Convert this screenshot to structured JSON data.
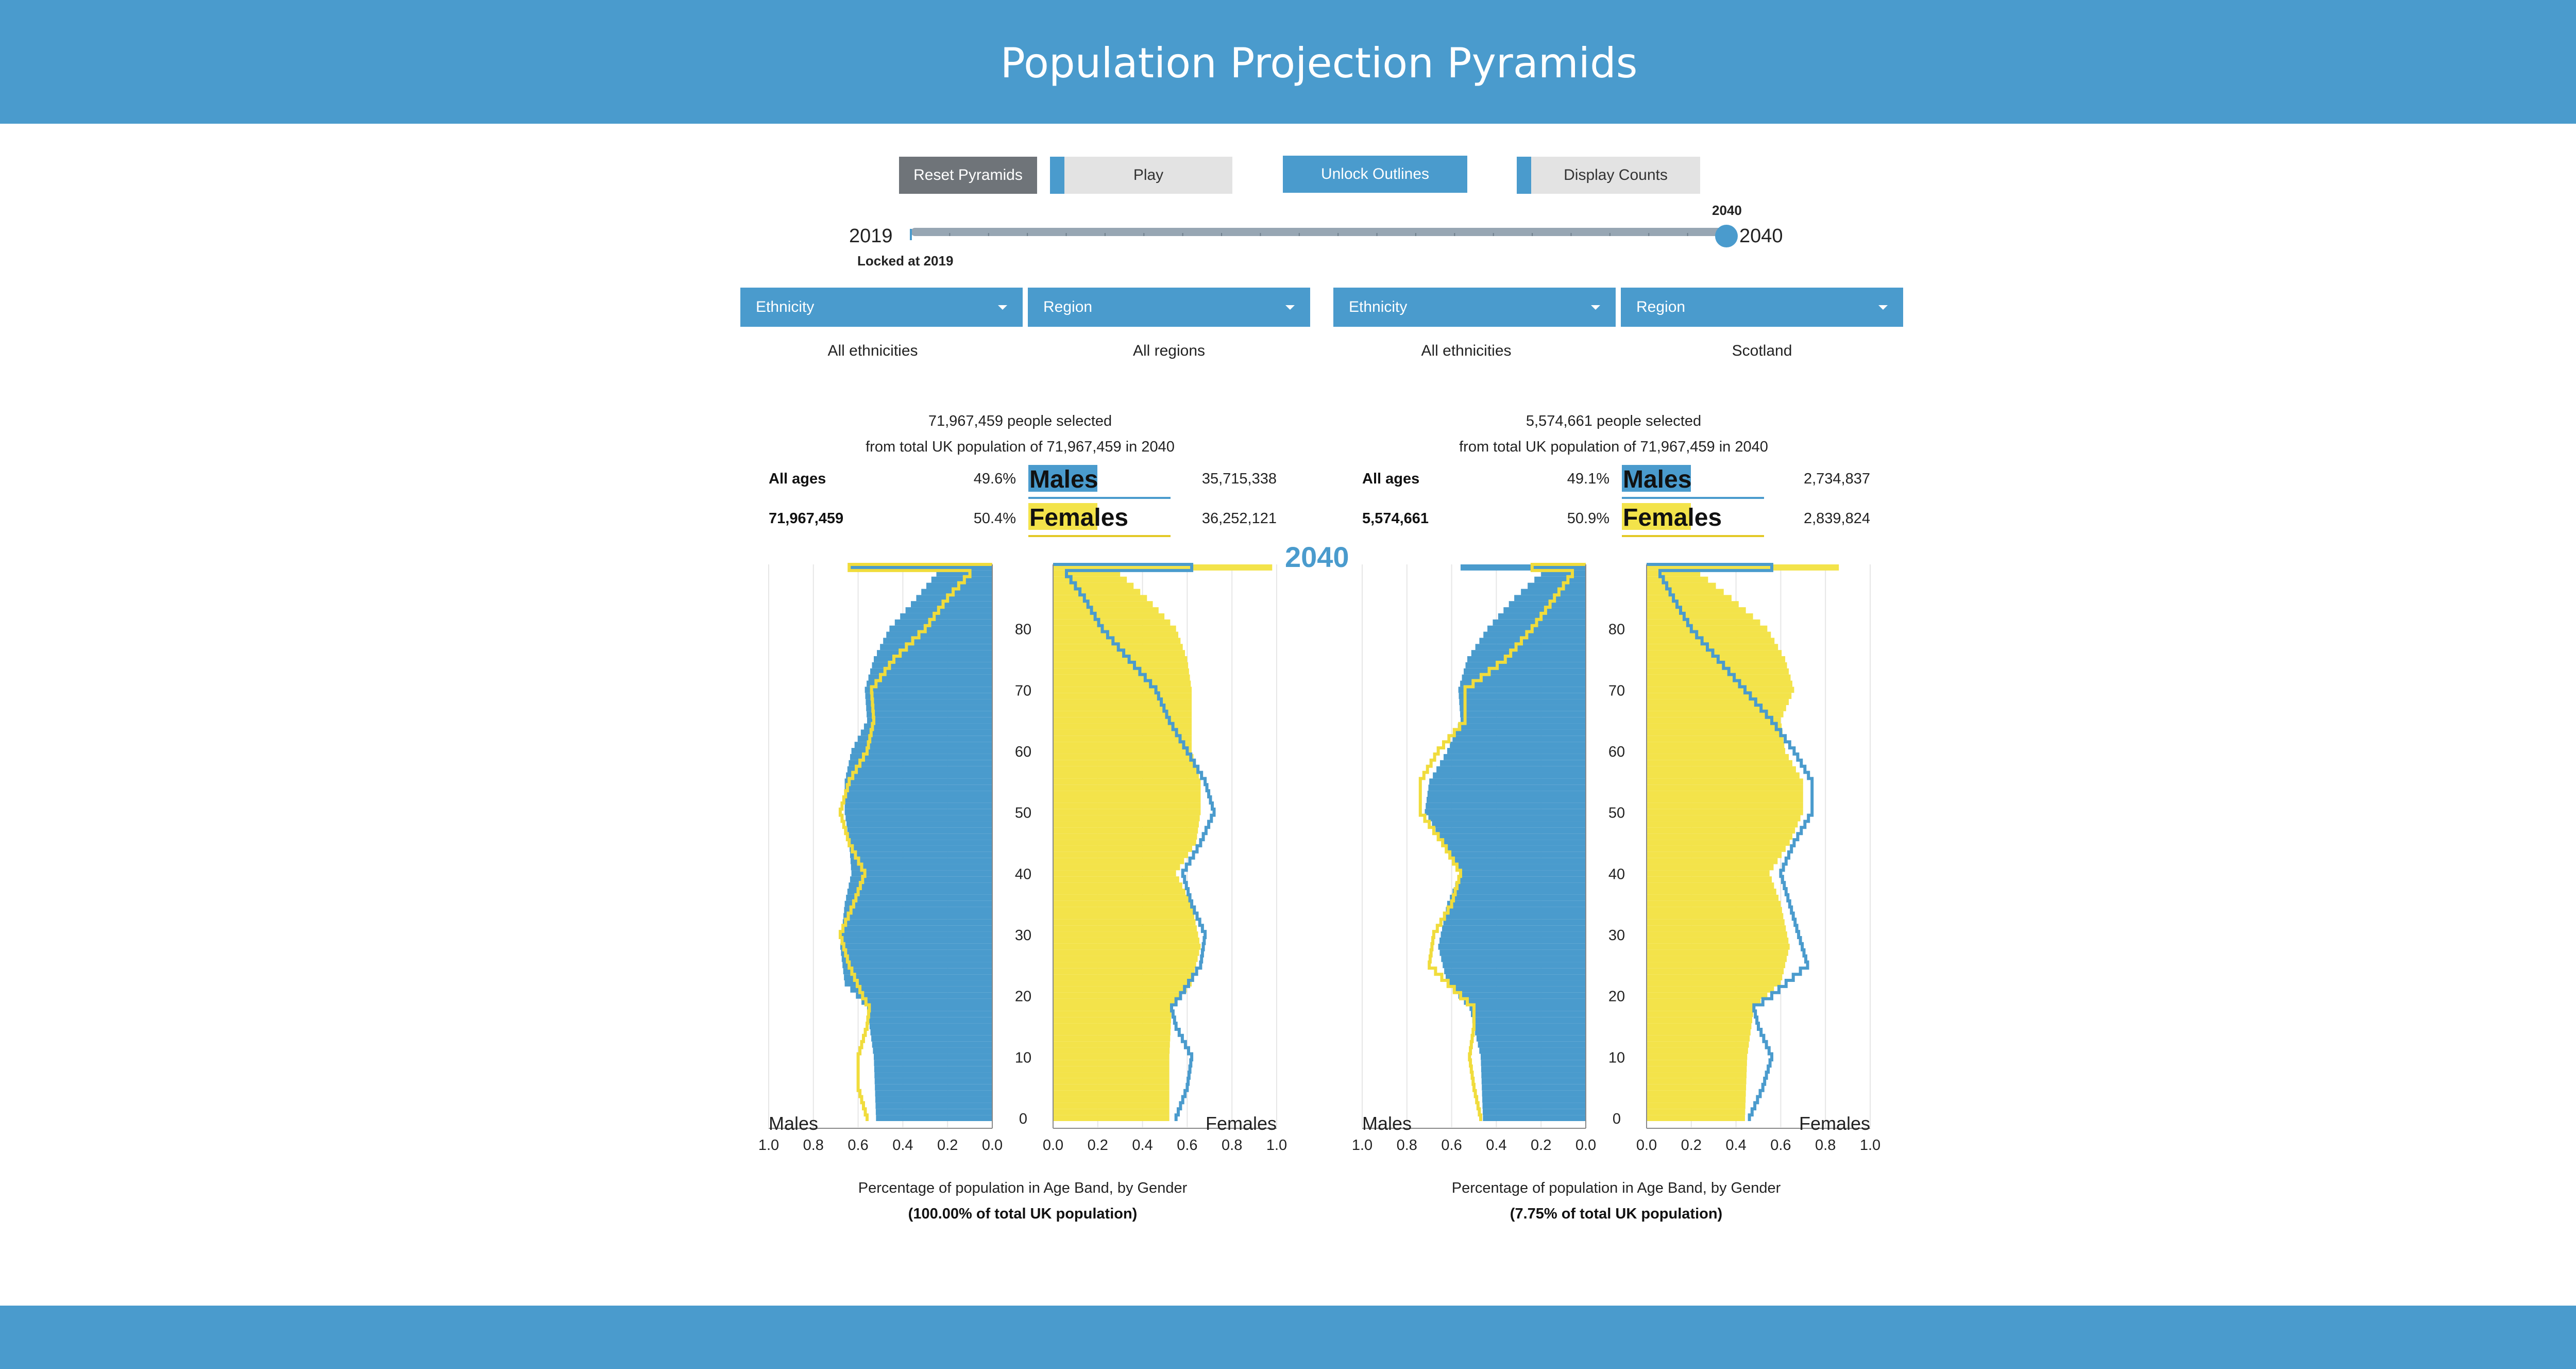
{
  "header": {
    "title": "Population Projection Pyramids"
  },
  "controls": {
    "reset_label": "Reset Pyramids",
    "play_label": "Play",
    "unlock_label": "Unlock Outlines",
    "counts_label": "Display Counts",
    "slider_min_label": "2019",
    "slider_max_label": "2040",
    "slider_value_label": "2040",
    "locked_label": "Locked at 2019",
    "slider_value": 2040,
    "slider_min": 2019,
    "slider_max": 2040
  },
  "panels": [
    {
      "ethnicity_label": "Ethnicity",
      "region_label": "Region",
      "ethnicity_value": "All ethnicities",
      "region_value": "All regions",
      "selected_text": "71,967,459 people selected",
      "from_text": "from total UK population of 71,967,459 in 2040",
      "all_ages_label": "All ages",
      "total": "71,967,459",
      "male_pct": "49.6%",
      "female_pct": "50.4%",
      "male_count": "35,715,338",
      "female_count": "36,252,121",
      "males_label": "Males",
      "females_label": "Females",
      "year_badge": "2040",
      "caption": "Percentage of population in Age Band, by Gender",
      "caption_share": "(100.00% of total UK population)"
    },
    {
      "ethnicity_label": "Ethnicity",
      "region_label": "Region",
      "ethnicity_value": "All ethnicities",
      "region_value": "Scotland",
      "selected_text": "5,574,661 people selected",
      "from_text": "from total UK population of 71,967,459 in 2040",
      "all_ages_label": "All ages",
      "total": "5,574,661",
      "male_pct": "49.1%",
      "female_pct": "50.9%",
      "male_count": "2,734,837",
      "female_count": "2,839,824",
      "males_label": "Males",
      "females_label": "Females",
      "year_badge": "",
      "caption": "Percentage of population in Age Band, by Gender",
      "caption_share": "(7.75% of total UK population)"
    }
  ],
  "colors": {
    "male": "#4a9bcd",
    "female": "#f3e34a",
    "header": "#4a9bcd"
  },
  "chart_data": [
    {
      "type": "bar",
      "orientation": "population-pyramid",
      "title": "",
      "xlabel": "Percentage of population in Age Band, by Gender",
      "male_axis_label": "Males",
      "female_axis_label": "Females",
      "age_ticks": [
        0,
        10,
        20,
        30,
        40,
        50,
        60,
        70,
        80
      ],
      "x_ticks": [
        "1.0",
        "0.8",
        "0.6",
        "0.4",
        "0.2",
        "0.0"
      ],
      "xlim": [
        0,
        1.0
      ],
      "age_range": [
        0,
        90
      ],
      "series_key": {
        "bars": "2040",
        "outline": "2019"
      },
      "male_bars_2040": [
        [
          0,
          0.52
        ],
        [
          10,
          0.53
        ],
        [
          18,
          0.56
        ],
        [
          22,
          0.66
        ],
        [
          28,
          0.68
        ],
        [
          35,
          0.66
        ],
        [
          40,
          0.63
        ],
        [
          45,
          0.64
        ],
        [
          50,
          0.66
        ],
        [
          55,
          0.66
        ],
        [
          60,
          0.63
        ],
        [
          65,
          0.56
        ],
        [
          70,
          0.57
        ],
        [
          75,
          0.53
        ],
        [
          80,
          0.46
        ],
        [
          85,
          0.34
        ],
        [
          89,
          0.25
        ],
        [
          90,
          0.64
        ]
      ],
      "male_outline_2019": [
        [
          0,
          0.56
        ],
        [
          5,
          0.6
        ],
        [
          10,
          0.6
        ],
        [
          15,
          0.56
        ],
        [
          18,
          0.55
        ],
        [
          20,
          0.58
        ],
        [
          25,
          0.64
        ],
        [
          30,
          0.68
        ],
        [
          35,
          0.62
        ],
        [
          40,
          0.57
        ],
        [
          45,
          0.64
        ],
        [
          50,
          0.68
        ],
        [
          55,
          0.64
        ],
        [
          60,
          0.56
        ],
        [
          65,
          0.53
        ],
        [
          70,
          0.54
        ],
        [
          75,
          0.44
        ],
        [
          80,
          0.3
        ],
        [
          85,
          0.2
        ],
        [
          89,
          0.1
        ],
        [
          90,
          0.64
        ]
      ],
      "female_bars_2040": [
        [
          0,
          0.52
        ],
        [
          10,
          0.52
        ],
        [
          18,
          0.53
        ],
        [
          22,
          0.62
        ],
        [
          28,
          0.66
        ],
        [
          35,
          0.62
        ],
        [
          40,
          0.55
        ],
        [
          45,
          0.64
        ],
        [
          50,
          0.66
        ],
        [
          55,
          0.66
        ],
        [
          60,
          0.62
        ],
        [
          65,
          0.62
        ],
        [
          70,
          0.62
        ],
        [
          75,
          0.6
        ],
        [
          80,
          0.55
        ],
        [
          85,
          0.42
        ],
        [
          89,
          0.3
        ],
        [
          90,
          0.98
        ]
      ],
      "female_outline_2019": [
        [
          0,
          0.55
        ],
        [
          5,
          0.6
        ],
        [
          10,
          0.62
        ],
        [
          15,
          0.55
        ],
        [
          18,
          0.53
        ],
        [
          20,
          0.57
        ],
        [
          25,
          0.66
        ],
        [
          30,
          0.68
        ],
        [
          35,
          0.62
        ],
        [
          40,
          0.58
        ],
        [
          45,
          0.66
        ],
        [
          50,
          0.72
        ],
        [
          55,
          0.68
        ],
        [
          60,
          0.6
        ],
        [
          65,
          0.52
        ],
        [
          70,
          0.46
        ],
        [
          75,
          0.34
        ],
        [
          80,
          0.22
        ],
        [
          85,
          0.14
        ],
        [
          89,
          0.06
        ],
        [
          90,
          0.62
        ]
      ]
    },
    {
      "type": "bar",
      "orientation": "population-pyramid",
      "title": "",
      "xlabel": "Percentage of population in Age Band, by Gender",
      "male_axis_label": "Males",
      "female_axis_label": "Females",
      "age_ticks": [
        0,
        10,
        20,
        30,
        40,
        50,
        60,
        70,
        80
      ],
      "x_ticks": [
        "1.0",
        "0.8",
        "0.6",
        "0.4",
        "0.2",
        "0.0"
      ],
      "xlim": [
        0,
        1.0
      ],
      "age_range": [
        0,
        90
      ],
      "series_key": {
        "bars": "2040",
        "outline": "2019"
      },
      "male_bars_2040": [
        [
          0,
          0.46
        ],
        [
          10,
          0.47
        ],
        [
          18,
          0.52
        ],
        [
          22,
          0.62
        ],
        [
          28,
          0.66
        ],
        [
          35,
          0.62
        ],
        [
          40,
          0.56
        ],
        [
          45,
          0.64
        ],
        [
          50,
          0.72
        ],
        [
          55,
          0.7
        ],
        [
          60,
          0.62
        ],
        [
          65,
          0.56
        ],
        [
          70,
          0.57
        ],
        [
          75,
          0.53
        ],
        [
          80,
          0.44
        ],
        [
          85,
          0.32
        ],
        [
          89,
          0.2
        ],
        [
          90,
          0.56
        ]
      ],
      "male_outline_2019": [
        [
          0,
          0.47
        ],
        [
          5,
          0.5
        ],
        [
          10,
          0.52
        ],
        [
          15,
          0.5
        ],
        [
          18,
          0.5
        ],
        [
          20,
          0.56
        ],
        [
          25,
          0.7
        ],
        [
          30,
          0.68
        ],
        [
          35,
          0.6
        ],
        [
          40,
          0.56
        ],
        [
          45,
          0.64
        ],
        [
          50,
          0.74
        ],
        [
          55,
          0.74
        ],
        [
          60,
          0.66
        ],
        [
          65,
          0.54
        ],
        [
          70,
          0.54
        ],
        [
          75,
          0.36
        ],
        [
          80,
          0.24
        ],
        [
          85,
          0.14
        ],
        [
          89,
          0.06
        ],
        [
          90,
          0.24
        ]
      ],
      "female_bars_2040": [
        [
          0,
          0.44
        ],
        [
          10,
          0.45
        ],
        [
          18,
          0.48
        ],
        [
          22,
          0.6
        ],
        [
          28,
          0.64
        ],
        [
          35,
          0.6
        ],
        [
          40,
          0.55
        ],
        [
          45,
          0.64
        ],
        [
          50,
          0.7
        ],
        [
          55,
          0.7
        ],
        [
          60,
          0.62
        ],
        [
          65,
          0.6
        ],
        [
          70,
          0.66
        ],
        [
          75,
          0.62
        ],
        [
          80,
          0.54
        ],
        [
          85,
          0.38
        ],
        [
          89,
          0.24
        ],
        [
          90,
          0.86
        ]
      ],
      "female_outline_2019": [
        [
          0,
          0.46
        ],
        [
          5,
          0.52
        ],
        [
          10,
          0.56
        ],
        [
          15,
          0.5
        ],
        [
          18,
          0.48
        ],
        [
          20,
          0.56
        ],
        [
          25,
          0.72
        ],
        [
          30,
          0.68
        ],
        [
          35,
          0.64
        ],
        [
          40,
          0.6
        ],
        [
          45,
          0.66
        ],
        [
          50,
          0.74
        ],
        [
          55,
          0.74
        ],
        [
          60,
          0.66
        ],
        [
          65,
          0.56
        ],
        [
          70,
          0.44
        ],
        [
          75,
          0.32
        ],
        [
          80,
          0.2
        ],
        [
          85,
          0.12
        ],
        [
          89,
          0.06
        ],
        [
          90,
          0.56
        ]
      ]
    }
  ]
}
